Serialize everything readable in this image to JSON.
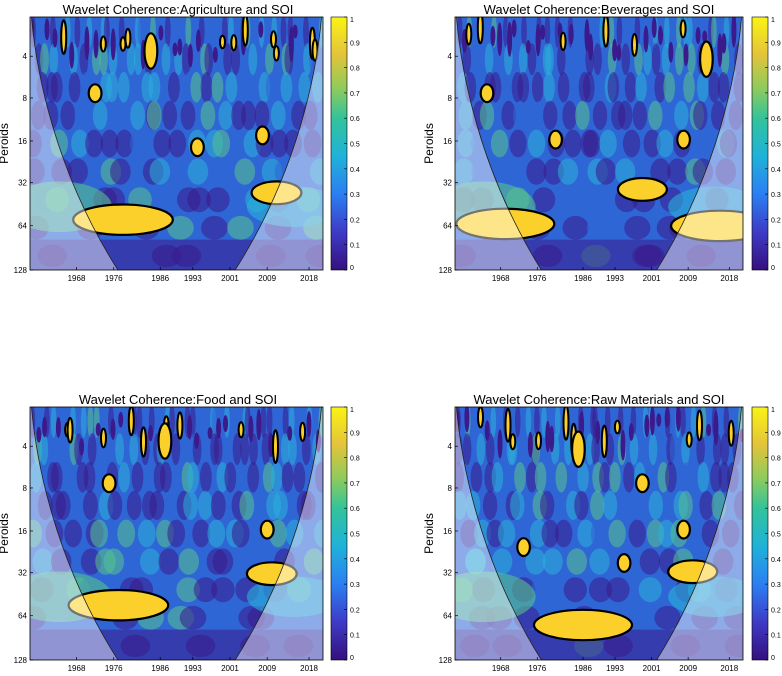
{
  "palette": {
    "deep": "#3b1a8c",
    "blue": "#2f66d6",
    "cyan": "#29b1d8",
    "green": "#55c28e",
    "yellow": "#fcd02b",
    "contour": "#000000",
    "coi_line": "#222222",
    "shade": "#ffffff"
  },
  "chart_data": [
    {
      "type": "heatmap",
      "title": "Wavelet Coherence:Agriculture and SOI",
      "ylabel": "Peroids",
      "xlabel": "",
      "x_ticks": [
        "1968",
        "1976",
        "1986",
        "1993",
        "2001",
        "2009",
        "2018"
      ],
      "y_ticks": [
        "4",
        "8",
        "16",
        "32",
        "64",
        "128"
      ],
      "colorbar_ticks": [
        "0",
        "0.1",
        "0.2",
        "0.3",
        "0.4",
        "0.5",
        "0.6",
        "0.7",
        "0.8",
        "0.9",
        "1"
      ],
      "colorbar_range": [
        0,
        1
      ],
      "y_scale": "log2",
      "significant_regions": [
        {
          "year": 1978,
          "period": 56,
          "coherence": 0.95
        },
        {
          "year": 2011,
          "period": 36,
          "coherence": 0.93
        },
        {
          "year": 2008,
          "period": 14,
          "coherence": 0.9
        },
        {
          "year": 1994,
          "period": 17,
          "coherence": 0.88
        },
        {
          "year": 1972,
          "period": 7,
          "coherence": 0.86
        },
        {
          "year": 1984,
          "period": 3.5,
          "coherence": 0.88
        }
      ]
    },
    {
      "type": "heatmap",
      "title": "Wavelet Coherence:Beverages and SOI",
      "ylabel": "Peroids",
      "xlabel": "",
      "x_ticks": [
        "1968",
        "1976",
        "1986",
        "1993",
        "2001",
        "2009",
        "2018"
      ],
      "y_ticks": [
        "4",
        "8",
        "16",
        "32",
        "64",
        "128"
      ],
      "colorbar_ticks": [
        "0",
        "0.1",
        "0.2",
        "0.3",
        "0.4",
        "0.5",
        "0.6",
        "0.7",
        "0.8",
        "0.9",
        "1"
      ],
      "colorbar_range": [
        0,
        1
      ],
      "y_scale": "log2",
      "significant_regions": [
        {
          "year": 1969,
          "period": 60,
          "coherence": 0.9
        },
        {
          "year": 2016,
          "period": 62,
          "coherence": 0.88
        },
        {
          "year": 1999,
          "period": 34,
          "coherence": 0.88
        },
        {
          "year": 2008,
          "period": 15,
          "coherence": 0.9
        },
        {
          "year": 1980,
          "period": 15,
          "coherence": 0.86
        },
        {
          "year": 1965,
          "period": 7,
          "coherence": 0.87
        },
        {
          "year": 2013,
          "period": 4,
          "coherence": 0.88
        }
      ]
    },
    {
      "type": "heatmap",
      "title": "Wavelet Coherence:Food and SOI",
      "ylabel": "Peroids",
      "xlabel": "",
      "x_ticks": [
        "1968",
        "1976",
        "1986",
        "1993",
        "2001",
        "2009",
        "2018"
      ],
      "y_ticks": [
        "4",
        "8",
        "16",
        "32",
        "64",
        "128"
      ],
      "colorbar_ticks": [
        "0",
        "0.1",
        "0.2",
        "0.3",
        "0.4",
        "0.5",
        "0.6",
        "0.7",
        "0.8",
        "0.9",
        "1"
      ],
      "colorbar_range": [
        0,
        1
      ],
      "y_scale": "log2",
      "significant_regions": [
        {
          "year": 1977,
          "period": 52,
          "coherence": 0.95
        },
        {
          "year": 2010,
          "period": 31,
          "coherence": 0.9
        },
        {
          "year": 2009,
          "period": 15,
          "coherence": 0.88
        },
        {
          "year": 1975,
          "period": 7,
          "coherence": 0.86
        },
        {
          "year": 1987,
          "period": 3.5,
          "coherence": 0.88
        }
      ]
    },
    {
      "type": "heatmap",
      "title": "Wavelet Coherence:Raw Materials and SOI",
      "ylabel": "Peroids",
      "xlabel": "",
      "x_ticks": [
        "1968",
        "1976",
        "1986",
        "1993",
        "2001",
        "2009",
        "2018"
      ],
      "y_ticks": [
        "4",
        "8",
        "16",
        "32",
        "64",
        "128"
      ],
      "colorbar_ticks": [
        "0",
        "0.1",
        "0.2",
        "0.3",
        "0.4",
        "0.5",
        "0.6",
        "0.7",
        "0.8",
        "0.9",
        "1"
      ],
      "colorbar_range": [
        0,
        1
      ],
      "y_scale": "log2",
      "significant_regions": [
        {
          "year": 1986,
          "period": 72,
          "coherence": 0.95
        },
        {
          "year": 2010,
          "period": 30,
          "coherence": 0.92
        },
        {
          "year": 1973,
          "period": 20,
          "coherence": 0.9
        },
        {
          "year": 1995,
          "period": 26,
          "coherence": 0.88
        },
        {
          "year": 2008,
          "period": 15,
          "coherence": 0.88
        },
        {
          "year": 1999,
          "period": 7,
          "coherence": 0.88
        },
        {
          "year": 1985,
          "period": 4,
          "coherence": 0.86
        }
      ]
    }
  ]
}
